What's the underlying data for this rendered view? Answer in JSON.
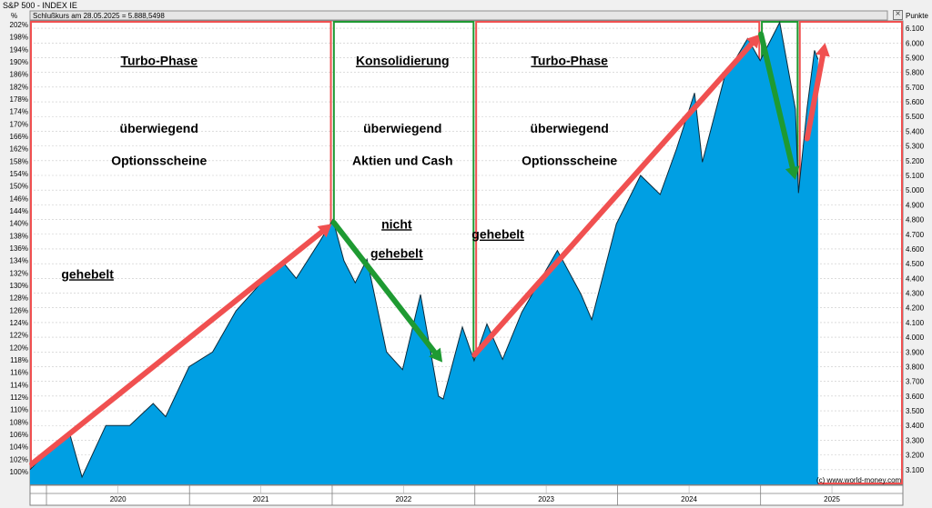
{
  "window": {
    "title": "S&P 500 - INDEX IE",
    "close_icon": "close-icon"
  },
  "chart_data": {
    "type": "area",
    "title": "S&P 500 - INDEX IE",
    "subtitle": "Schlußkurs am 28.05.2025 = 5.888,5498",
    "left_axis_unit": "%",
    "right_axis_unit": "Punkte",
    "credit": "(c) www.world-money.com",
    "color_fill": "#009fe3",
    "color_red": "#f05050",
    "color_green": "#1e9a32",
    "grid": true,
    "xlim": [
      "2019-11-20",
      "2025-12-31"
    ],
    "year_labels": [
      "2020",
      "2021",
      "2022",
      "2023",
      "2024",
      "2025"
    ],
    "left_ticks": [
      "100%",
      "102%",
      "104%",
      "106%",
      "108%",
      "110%",
      "112%",
      "114%",
      "116%",
      "118%",
      "120%",
      "122%",
      "124%",
      "126%",
      "128%",
      "130%",
      "132%",
      "134%",
      "136%",
      "138%",
      "140%",
      "144%",
      "146%",
      "150%",
      "154%",
      "158%",
      "162%",
      "166%",
      "170%",
      "174%",
      "178%",
      "182%",
      "186%",
      "190%",
      "194%",
      "198%",
      "202%"
    ],
    "ylim": [
      3000,
      6150
    ],
    "right_ticks": [
      3100,
      3200,
      3300,
      3400,
      3500,
      3600,
      3700,
      3800,
      3900,
      4000,
      4100,
      4200,
      4300,
      4400,
      4500,
      4600,
      4700,
      4800,
      4900,
      5000,
      5100,
      5200,
      5300,
      5400,
      5500,
      5600,
      5700,
      5800,
      5900,
      6000,
      6100
    ],
    "right_tick_labels": [
      "3.100",
      "3.200",
      "3.300",
      "3.400",
      "3.500",
      "3.600",
      "3.700",
      "3.800",
      "3.900",
      "4.000",
      "4.100",
      "4.200",
      "4.300",
      "4.400",
      "4.500",
      "4.600",
      "4.700",
      "4.800",
      "4.900",
      "5.000",
      "5.100",
      "5.200",
      "5.300",
      "5.400",
      "5.500",
      "5.600",
      "5.700",
      "5.800",
      "5.900",
      "6.000",
      "6.100"
    ],
    "series": [
      {
        "x": [
          "2019-11-20",
          "2020-01-15",
          "2020-03-01",
          "2020-04-01",
          "2020-06-01",
          "2020-08-01",
          "2020-09-30",
          "2020-11-01",
          "2020-12-31",
          "2021-03-01",
          "2021-04-30",
          "2021-06-30",
          "2021-08-31",
          "2021-10-01",
          "2021-11-30",
          "2022-01-03",
          "2022-01-31",
          "2022-03-01",
          "2022-03-31",
          "2022-05-20",
          "2022-06-30",
          "2022-08-15",
          "2022-09-30",
          "2022-10-12",
          "2022-11-30",
          "2022-12-30",
          "2023-02-01",
          "2023-03-13",
          "2023-05-01",
          "2023-07-31",
          "2023-09-30",
          "2023-10-27",
          "2023-12-29",
          "2024-02-29",
          "2024-04-19",
          "2024-05-31",
          "2024-07-16",
          "2024-08-05",
          "2024-09-30",
          "2024-11-29",
          "2024-12-31",
          "2025-02-19",
          "2025-03-31",
          "2025-04-08",
          "2025-04-30",
          "2025-05-19",
          "2025-05-28"
        ],
        "values": [
          3100,
          3250,
          3340,
          3050,
          3400,
          3400,
          3550,
          3460,
          3800,
          3900,
          4180,
          4360,
          4500,
          4400,
          4650,
          4800,
          4520,
          4370,
          4530,
          3900,
          3780,
          4290,
          3600,
          3580,
          4070,
          3840,
          4090,
          3850,
          4170,
          4590,
          4290,
          4120,
          4770,
          5100,
          4970,
          5280,
          5660,
          5190,
          5760,
          6030,
          5880,
          6140,
          5550,
          4980,
          5560,
          5950,
          5888
        ]
      }
    ],
    "phases": [
      {
        "name": "phase-1",
        "color": "red",
        "start": "2019-11-20",
        "end": "2021-12-31"
      },
      {
        "name": "phase-2",
        "color": "green",
        "start": "2022-01-03",
        "end": "2022-12-31"
      },
      {
        "name": "phase-3",
        "color": "red",
        "start": "2023-01-02",
        "end": "2024-12-31"
      },
      {
        "name": "phase-4",
        "color": "green",
        "start": "2025-01-02",
        "end": "2025-04-08"
      },
      {
        "name": "phase-5",
        "color": "red",
        "start": "2025-04-09",
        "end": "2025-12-31"
      }
    ],
    "arrows": [
      {
        "color": "red",
        "from": {
          "x": "2019-11-25",
          "y": 3140
        },
        "to": {
          "x": "2021-12-31",
          "y": 4770
        }
      },
      {
        "color": "green",
        "from": {
          "x": "2022-01-05",
          "y": 4780
        },
        "to": {
          "x": "2022-10-10",
          "y": 3830
        }
      },
      {
        "color": "red",
        "from": {
          "x": "2022-12-31",
          "y": 3880
        },
        "to": {
          "x": "2024-12-31",
          "y": 6060
        }
      },
      {
        "color": "green",
        "from": {
          "x": "2025-01-02",
          "y": 6060
        },
        "to": {
          "x": "2025-03-31",
          "y": 5070
        }
      },
      {
        "color": "red",
        "from": {
          "x": "2025-04-30",
          "y": 5350
        },
        "to": {
          "x": "2025-06-15",
          "y": 6000
        }
      }
    ],
    "annotations": [
      {
        "text": "Turbo-Phase",
        "x": "2020-10-15",
        "y": 5850,
        "underline": true
      },
      {
        "text": "überwiegend",
        "x": "2020-10-15",
        "y": 5390,
        "underline": false
      },
      {
        "text": "Optionsscheine",
        "x": "2020-10-15",
        "y": 5170,
        "underline": false
      },
      {
        "text": "gehebelt",
        "x": "2020-04-15",
        "y": 4400,
        "underline": true
      },
      {
        "text": "Konsolidierung",
        "x": "2022-06-30",
        "y": 5850,
        "underline": true
      },
      {
        "text": "überwiegend",
        "x": "2022-06-30",
        "y": 5390,
        "underline": false
      },
      {
        "text": "Aktien und Cash",
        "x": "2022-06-30",
        "y": 5170,
        "underline": false
      },
      {
        "text": "nicht",
        "x": "2022-06-15",
        "y": 4740,
        "underline": true
      },
      {
        "text": "gehebelt",
        "x": "2022-06-15",
        "y": 4540,
        "underline": true
      },
      {
        "text": "Turbo-Phase",
        "x": "2023-08-31",
        "y": 5850,
        "underline": true
      },
      {
        "text": "überwiegend",
        "x": "2023-08-31",
        "y": 5390,
        "underline": false
      },
      {
        "text": "Optionsscheine",
        "x": "2023-08-31",
        "y": 5170,
        "underline": false
      },
      {
        "text": "gehebelt",
        "x": "2023-03-01",
        "y": 4670,
        "underline": true
      }
    ]
  }
}
